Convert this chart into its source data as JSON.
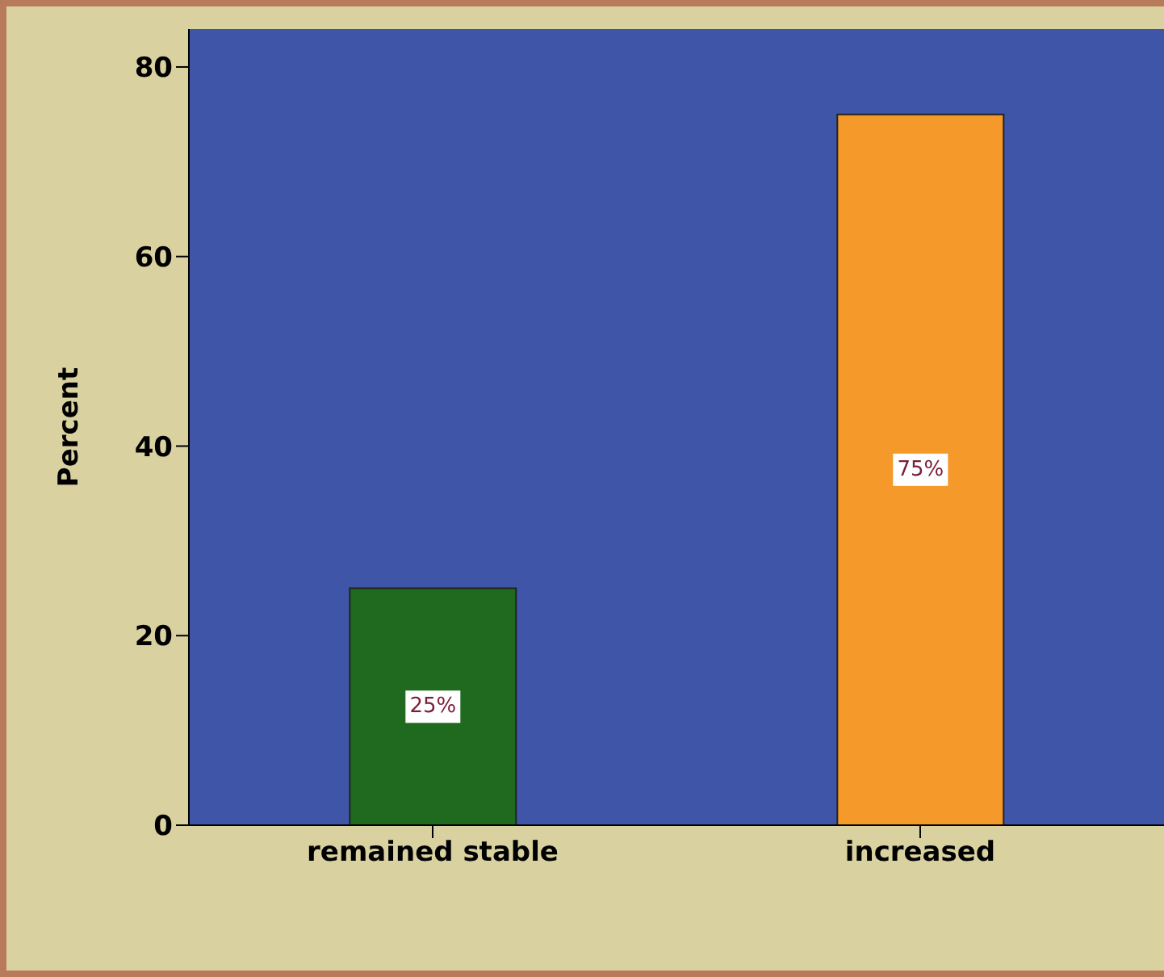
{
  "chart_data": {
    "type": "bar",
    "ylabel": "Percent",
    "categories": [
      "remained stable",
      "increased"
    ],
    "values": [
      25,
      75
    ],
    "colors": [
      "#1f6a1f",
      "#f59a2a"
    ],
    "value_labels": [
      "25%",
      "75%"
    ],
    "ylim": [
      0,
      84
    ],
    "yticks": [
      0,
      20,
      40,
      60,
      80
    ],
    "grid": false
  }
}
